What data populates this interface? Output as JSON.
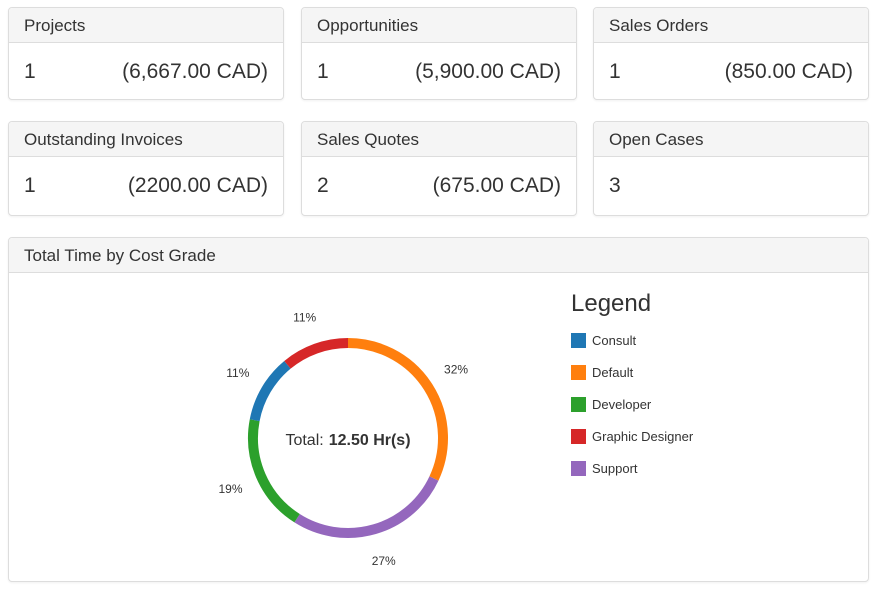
{
  "summary_cards": [
    {
      "title": "Projects",
      "count": "1",
      "amount": "(6,667.00 CAD)"
    },
    {
      "title": "Opportunities",
      "count": "1",
      "amount": "(5,900.00 CAD)"
    },
    {
      "title": "Sales Orders",
      "count": "1",
      "amount": "(850.00 CAD)"
    },
    {
      "title": "Outstanding Invoices",
      "count": "1",
      "amount": "(2200.00 CAD)"
    },
    {
      "title": "Sales Quotes",
      "count": "2",
      "amount": "(675.00 CAD)"
    },
    {
      "title": "Open Cases",
      "count": "3",
      "amount": ""
    }
  ],
  "chart_panel": {
    "title": "Total Time by Cost Grade",
    "center_label": "Total:",
    "center_value": "12.50 Hr(s)",
    "legend_title": "Legend"
  },
  "chart_data": {
    "type": "pie",
    "title": "Total Time by Cost Grade",
    "donut": true,
    "start_category": "Default",
    "categories": [
      "Default",
      "Support",
      "Developer",
      "Consult",
      "Graphic Designer"
    ],
    "values": [
      32,
      27,
      19,
      11,
      11
    ],
    "labels": [
      "32%",
      "27%",
      "19%",
      "11%",
      "11%"
    ],
    "colors": [
      "#ff7f0e",
      "#9467bd",
      "#2ca02c",
      "#1f77b4",
      "#d62728"
    ],
    "legend_order": [
      "Consult",
      "Default",
      "Developer",
      "Graphic Designer",
      "Support"
    ],
    "legend_colors": [
      "#1f77b4",
      "#ff7f0e",
      "#2ca02c",
      "#d62728",
      "#9467bd"
    ],
    "legend_placement": "right"
  }
}
